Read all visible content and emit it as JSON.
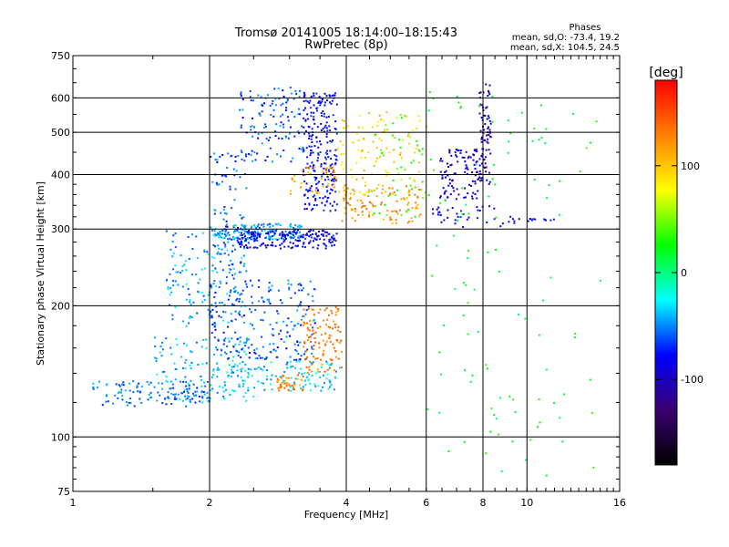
{
  "chart_data": {
    "type": "scatter",
    "title": "Tromsø 20141005 18:14:00–18:15:43",
    "subtitle": "RwPretec (8p)",
    "xlabel": "Frequency [MHz]",
    "ylabel": "Stationary phase Virtual Height [km]",
    "x_scale": "log",
    "y_scale": "log",
    "xlim": [
      1,
      16
    ],
    "ylim": [
      75,
      750
    ],
    "x_ticks": [
      1,
      2,
      4,
      6,
      8,
      10,
      16
    ],
    "y_ticks": [
      75,
      100,
      200,
      300,
      400,
      500,
      600,
      750
    ],
    "grid": true,
    "phases": {
      "title": "Phases",
      "line_o": "mean, sd,O: -73.4, 19.2",
      "line_x": "mean, sd,X: 104.5, 24.5"
    },
    "colorbar": {
      "label": "[deg]",
      "range": [
        -180,
        180
      ],
      "ticks": [
        100,
        0,
        -100
      ],
      "colors": [
        "#000000",
        "#3a0070",
        "#0000ff",
        "#00ffff",
        "#00ff00",
        "#ffff00",
        "#ff8000",
        "#ff0000"
      ]
    },
    "clusters": [
      {
        "x": [
          1.1,
          2.0
        ],
        "y": [
          118,
          135
        ],
        "phase": -55,
        "n": 120
      },
      {
        "x": [
          1.5,
          2.5
        ],
        "y": [
          120,
          170
        ],
        "phase": -40,
        "n": 140
      },
      {
        "x": [
          1.6,
          2.4
        ],
        "y": [
          180,
          300
        ],
        "phase": -45,
        "n": 150
      },
      {
        "x": [
          2.0,
          2.4
        ],
        "y": [
          150,
          450
        ],
        "phase": -60,
        "n": 160
      },
      {
        "x": [
          2.2,
          3.9
        ],
        "y": [
          128,
          150
        ],
        "phase": -35,
        "n": 120
      },
      {
        "x": [
          2.4,
          3.4
        ],
        "y": [
          150,
          230
        ],
        "phase": -60,
        "n": 140
      },
      {
        "x": [
          2.0,
          3.2
        ],
        "y": [
          285,
          310
        ],
        "phase": -45,
        "n": 150
      },
      {
        "x": [
          2.3,
          3.8
        ],
        "y": [
          272,
          300
        ],
        "phase": -85,
        "n": 180
      },
      {
        "x": [
          2.3,
          3.2
        ],
        "y": [
          430,
          640
        ],
        "phase": -60,
        "n": 120
      },
      {
        "x": [
          3.2,
          3.8
        ],
        "y": [
          330,
          620
        ],
        "phase": -80,
        "n": 240
      },
      {
        "x": [
          3.0,
          3.8
        ],
        "y": [
          360,
          420
        ],
        "phase": 115,
        "n": 40
      },
      {
        "x": [
          2.8,
          3.2
        ],
        "y": [
          128,
          140
        ],
        "phase": 125,
        "n": 40
      },
      {
        "x": [
          3.2,
          3.9
        ],
        "y": [
          140,
          200
        ],
        "phase": 130,
        "n": 110
      },
      {
        "x": [
          3.9,
          5.8
        ],
        "y": [
          310,
          380
        ],
        "phase": 120,
        "n": 100
      },
      {
        "x": [
          3.8,
          5.8
        ],
        "y": [
          360,
          560
        ],
        "phase": 95,
        "n": 110
      },
      {
        "x": [
          4.5,
          6.0
        ],
        "y": [
          320,
          560
        ],
        "phase": 35,
        "n": 50
      },
      {
        "x": [
          6.4,
          7.8
        ],
        "y": [
          350,
          460
        ],
        "phase": -95,
        "n": 100
      },
      {
        "x": [
          7.8,
          8.3
        ],
        "y": [
          380,
          650
        ],
        "phase": -105,
        "n": 80
      },
      {
        "x": [
          6.1,
          9.4
        ],
        "y": [
          300,
          340
        ],
        "phase": -85,
        "n": 40
      },
      {
        "x": [
          6.0,
          14.5
        ],
        "y": [
          80,
          650
        ],
        "phase": 20,
        "n": 110
      },
      {
        "x": [
          9.4,
          11.5
        ],
        "y": [
          313,
          320
        ],
        "phase": -80,
        "n": 12
      }
    ]
  }
}
